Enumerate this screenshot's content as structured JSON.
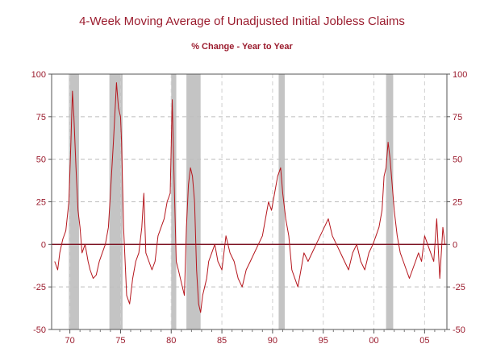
{
  "chart_data": {
    "type": "line",
    "title": "4-Week Moving Average of Unadjusted Initial Jobless Claims",
    "subtitle": "% Change - Year to Year",
    "xlabel": "",
    "ylabel": "",
    "xlim": [
      1968.2,
      2007.2
    ],
    "ylim": [
      -50,
      100
    ],
    "y_ticks": [
      100,
      75,
      50,
      25,
      0,
      -25,
      -50
    ],
    "y_tick_labels": [
      "100",
      "75",
      "50",
      "25",
      "0",
      "-25",
      "-50"
    ],
    "x_ticks": [
      1970,
      1975,
      1980,
      1985,
      1990,
      1995,
      2000,
      2005
    ],
    "x_tick_labels": [
      "70",
      "75",
      "80",
      "85",
      "90",
      "95",
      "00",
      "05"
    ],
    "grid": "dashed horizontal",
    "recessions": [
      {
        "start": 1969.9,
        "end": 1970.9
      },
      {
        "start": 1973.9,
        "end": 1975.2
      },
      {
        "start": 1980.0,
        "end": 1980.5
      },
      {
        "start": 1981.5,
        "end": 1982.9
      },
      {
        "start": 1990.6,
        "end": 1991.2
      },
      {
        "start": 2001.2,
        "end": 2001.9
      }
    ],
    "series": [
      {
        "color": "#b5161d",
        "x": [
          1968.5,
          1968.8,
          1969.0,
          1969.3,
          1969.6,
          1969.9,
          1970.1,
          1970.25,
          1970.4,
          1970.6,
          1970.8,
          1971.0,
          1971.2,
          1971.5,
          1971.8,
          1972.0,
          1972.3,
          1972.6,
          1972.9,
          1973.2,
          1973.5,
          1973.8,
          1974.0,
          1974.3,
          1974.6,
          1974.8,
          1975.0,
          1975.1,
          1975.3,
          1975.6,
          1975.9,
          1976.2,
          1976.5,
          1976.8,
          1977.1,
          1977.3,
          1977.5,
          1977.8,
          1978.1,
          1978.4,
          1978.7,
          1979.0,
          1979.3,
          1979.6,
          1979.9,
          1980.1,
          1980.3,
          1980.5,
          1980.7,
          1980.9,
          1981.1,
          1981.3,
          1981.5,
          1981.7,
          1981.9,
          1982.1,
          1982.3,
          1982.5,
          1982.7,
          1982.9,
          1983.1,
          1983.3,
          1983.5,
          1983.7,
          1984.0,
          1984.3,
          1984.6,
          1985.0,
          1985.4,
          1985.8,
          1986.2,
          1986.6,
          1987.0,
          1987.4,
          1987.8,
          1988.2,
          1988.6,
          1989.0,
          1989.3,
          1989.6,
          1989.9,
          1990.2,
          1990.5,
          1990.8,
          1991.0,
          1991.3,
          1991.6,
          1991.9,
          1992.2,
          1992.5,
          1992.8,
          1993.1,
          1993.5,
          1993.9,
          1994.3,
          1994.7,
          1995.1,
          1995.5,
          1995.9,
          1996.3,
          1996.7,
          1997.1,
          1997.5,
          1997.9,
          1998.3,
          1998.7,
          1999.1,
          1999.5,
          1999.9,
          2000.2,
          2000.5,
          2000.8,
          2001.0,
          2001.2,
          2001.4,
          2001.6,
          2001.8,
          2002.0,
          2002.3,
          2002.6,
          2002.9,
          2003.2,
          2003.5,
          2003.8,
          2004.1,
          2004.4,
          2004.7,
          2005.0,
          2005.3,
          2005.6,
          2005.9,
          2006.2,
          2006.5,
          2006.8,
          2007.0
        ],
        "y": [
          -10,
          -15,
          -5,
          3,
          8,
          25,
          60,
          90,
          75,
          45,
          20,
          10,
          -5,
          0,
          -10,
          -15,
          -20,
          -18,
          -10,
          -5,
          0,
          10,
          30,
          60,
          95,
          80,
          75,
          60,
          10,
          -30,
          -35,
          -20,
          -10,
          -5,
          10,
          30,
          -5,
          -10,
          -15,
          -10,
          5,
          10,
          15,
          25,
          30,
          85,
          35,
          -10,
          -15,
          -20,
          -25,
          -30,
          10,
          35,
          45,
          40,
          25,
          -15,
          -35,
          -40,
          -30,
          -25,
          -20,
          -10,
          -5,
          0,
          -10,
          -15,
          5,
          -5,
          -10,
          -20,
          -25,
          -15,
          -10,
          -5,
          0,
          5,
          15,
          25,
          20,
          30,
          40,
          45,
          30,
          15,
          5,
          -15,
          -20,
          -25,
          -15,
          -5,
          -10,
          -5,
          0,
          5,
          10,
          15,
          5,
          0,
          -5,
          -10,
          -15,
          -5,
          0,
          -10,
          -15,
          -5,
          0,
          5,
          10,
          20,
          40,
          45,
          60,
          50,
          35,
          20,
          5,
          -5,
          -10,
          -15,
          -20,
          -15,
          -10,
          -5,
          -10,
          5,
          0,
          -5,
          -10,
          15,
          -20,
          10,
          0
        ]
      }
    ]
  }
}
